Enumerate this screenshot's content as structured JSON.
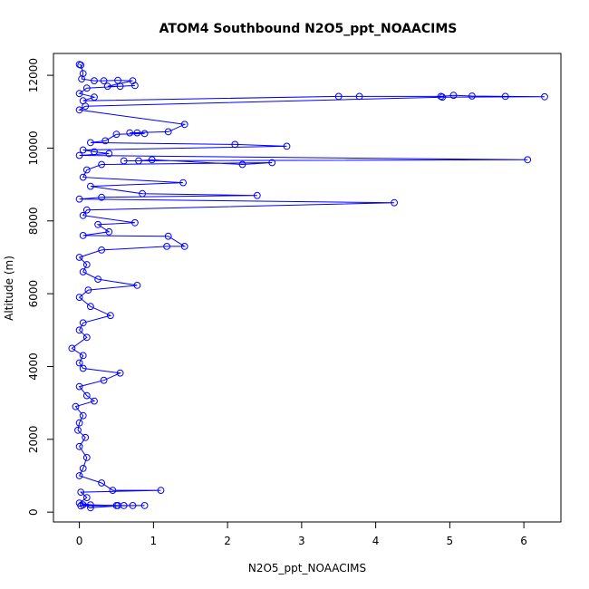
{
  "chart_data": {
    "type": "scatter",
    "title": "ATOM4 Southbound N2O5_ppt_NOAACIMS",
    "xlabel": "N2O5_ppt_NOAACIMS",
    "ylabel": "Altitude (m)",
    "xlim": [
      -0.35,
      6.5
    ],
    "ylim": [
      -270,
      12600
    ],
    "xticks": [
      0,
      1,
      2,
      3,
      4,
      5,
      6
    ],
    "yticks": [
      0,
      2000,
      4000,
      6000,
      8000,
      10000,
      12000
    ],
    "series_color": "#0000FF",
    "marker": "open-circle",
    "connected": true,
    "grid": false,
    "series": [
      {
        "values": [
          [
            0.0,
            12300
          ],
          [
            0.02,
            12280
          ],
          [
            0.05,
            12050
          ],
          [
            0.03,
            11900
          ],
          [
            0.2,
            11850
          ],
          [
            0.33,
            11850
          ],
          [
            0.52,
            11860
          ],
          [
            0.72,
            11850
          ],
          [
            0.38,
            11700
          ],
          [
            0.55,
            11700
          ],
          [
            0.75,
            11720
          ],
          [
            0.1,
            11650
          ],
          [
            0.0,
            11500
          ],
          [
            0.2,
            11400
          ],
          [
            0.05,
            11300
          ],
          [
            3.5,
            11420
          ],
          [
            3.78,
            11420
          ],
          [
            4.88,
            11420
          ],
          [
            5.05,
            11450
          ],
          [
            5.3,
            11430
          ],
          [
            5.75,
            11420
          ],
          [
            6.28,
            11410
          ],
          [
            4.9,
            11400
          ],
          [
            0.08,
            11150
          ],
          [
            0.0,
            11050
          ],
          [
            1.42,
            10650
          ],
          [
            1.2,
            10450
          ],
          [
            0.68,
            10420
          ],
          [
            0.78,
            10420
          ],
          [
            0.88,
            10400
          ],
          [
            0.5,
            10380
          ],
          [
            0.35,
            10200
          ],
          [
            0.15,
            10150
          ],
          [
            2.1,
            10100
          ],
          [
            2.8,
            10050
          ],
          [
            0.05,
            9950
          ],
          [
            0.2,
            9900
          ],
          [
            0.4,
            9850
          ],
          [
            0.0,
            9800
          ],
          [
            6.05,
            9680
          ],
          [
            0.6,
            9650
          ],
          [
            0.8,
            9650
          ],
          [
            0.98,
            9680
          ],
          [
            2.2,
            9550
          ],
          [
            2.6,
            9600
          ],
          [
            0.3,
            9550
          ],
          [
            0.1,
            9400
          ],
          [
            0.05,
            9200
          ],
          [
            1.4,
            9050
          ],
          [
            0.15,
            8950
          ],
          [
            0.85,
            8750
          ],
          [
            2.4,
            8700
          ],
          [
            0.3,
            8650
          ],
          [
            0.0,
            8600
          ],
          [
            4.25,
            8500
          ],
          [
            0.1,
            8300
          ],
          [
            0.05,
            8150
          ],
          [
            0.75,
            7950
          ],
          [
            0.25,
            7900
          ],
          [
            0.4,
            7700
          ],
          [
            0.05,
            7600
          ],
          [
            1.2,
            7580
          ],
          [
            1.42,
            7300
          ],
          [
            1.18,
            7300
          ],
          [
            0.3,
            7200
          ],
          [
            0.0,
            7000
          ],
          [
            0.1,
            6800
          ],
          [
            0.05,
            6600
          ],
          [
            0.25,
            6400
          ],
          [
            0.78,
            6230
          ],
          [
            0.12,
            6100
          ],
          [
            0.0,
            5900
          ],
          [
            0.15,
            5650
          ],
          [
            0.42,
            5400
          ],
          [
            0.05,
            5200
          ],
          [
            0.0,
            5000
          ],
          [
            0.1,
            4800
          ],
          [
            -0.1,
            4500
          ],
          [
            0.05,
            4300
          ],
          [
            0.0,
            4100
          ],
          [
            0.05,
            3950
          ],
          [
            0.55,
            3820
          ],
          [
            0.33,
            3620
          ],
          [
            0.0,
            3450
          ],
          [
            0.1,
            3200
          ],
          [
            0.2,
            3050
          ],
          [
            -0.05,
            2900
          ],
          [
            0.05,
            2650
          ],
          [
            0.0,
            2450
          ],
          [
            -0.02,
            2250
          ],
          [
            0.08,
            2050
          ],
          [
            0.0,
            1800
          ],
          [
            0.1,
            1500
          ],
          [
            0.05,
            1200
          ],
          [
            0.0,
            1000
          ],
          [
            0.3,
            800
          ],
          [
            0.45,
            600
          ],
          [
            1.1,
            600
          ],
          [
            0.02,
            550
          ],
          [
            0.1,
            400
          ],
          [
            0.0,
            250
          ],
          [
            0.15,
            200
          ],
          [
            0.5,
            180
          ],
          [
            0.52,
            180
          ],
          [
            0.72,
            180
          ],
          [
            0.88,
            180
          ],
          [
            0.02,
            170
          ],
          [
            0.05,
            200
          ],
          [
            0.6,
            180
          ],
          [
            0.15,
            120
          ]
        ]
      }
    ]
  }
}
